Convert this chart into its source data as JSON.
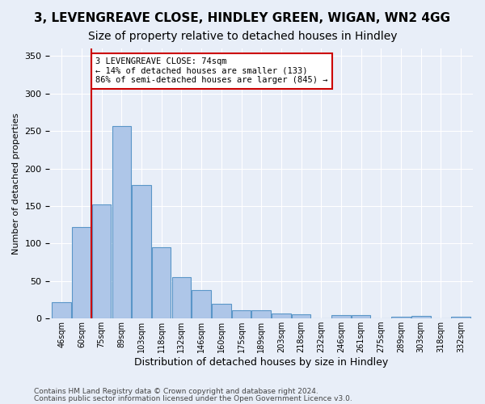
{
  "title1": "3, LEVENGREAVE CLOSE, HINDLEY GREEN, WIGAN, WN2 4GG",
  "title2": "Size of property relative to detached houses in Hindley",
  "xlabel": "Distribution of detached houses by size in Hindley",
  "ylabel": "Number of detached properties",
  "bins": [
    "46sqm",
    "60sqm",
    "75sqm",
    "89sqm",
    "103sqm",
    "118sqm",
    "132sqm",
    "146sqm",
    "160sqm",
    "175sqm",
    "189sqm",
    "203sqm",
    "218sqm",
    "232sqm",
    "246sqm",
    "261sqm",
    "275sqm",
    "289sqm",
    "303sqm",
    "318sqm",
    "332sqm"
  ],
  "values": [
    22,
    122,
    152,
    257,
    178,
    95,
    55,
    38,
    20,
    11,
    11,
    7,
    6,
    0,
    5,
    4,
    0,
    2,
    3,
    0,
    2
  ],
  "bar_color": "#aec6e8",
  "bar_edge_color": "#5a96c8",
  "vline_color": "#cc0000",
  "annotation_text": "3 LEVENGREAVE CLOSE: 74sqm\n← 14% of detached houses are smaller (133)\n86% of semi-detached houses are larger (845) →",
  "annotation_box_color": "#ffffff",
  "annotation_box_edge_color": "#cc0000",
  "ylim": [
    0,
    360
  ],
  "yticks": [
    0,
    50,
    100,
    150,
    200,
    250,
    300,
    350
  ],
  "footer1": "Contains HM Land Registry data © Crown copyright and database right 2024.",
  "footer2": "Contains public sector information licensed under the Open Government Licence v3.0.",
  "bg_color": "#e8eef8",
  "plot_bg_color": "#e8eef8",
  "title1_fontsize": 11,
  "title2_fontsize": 10
}
